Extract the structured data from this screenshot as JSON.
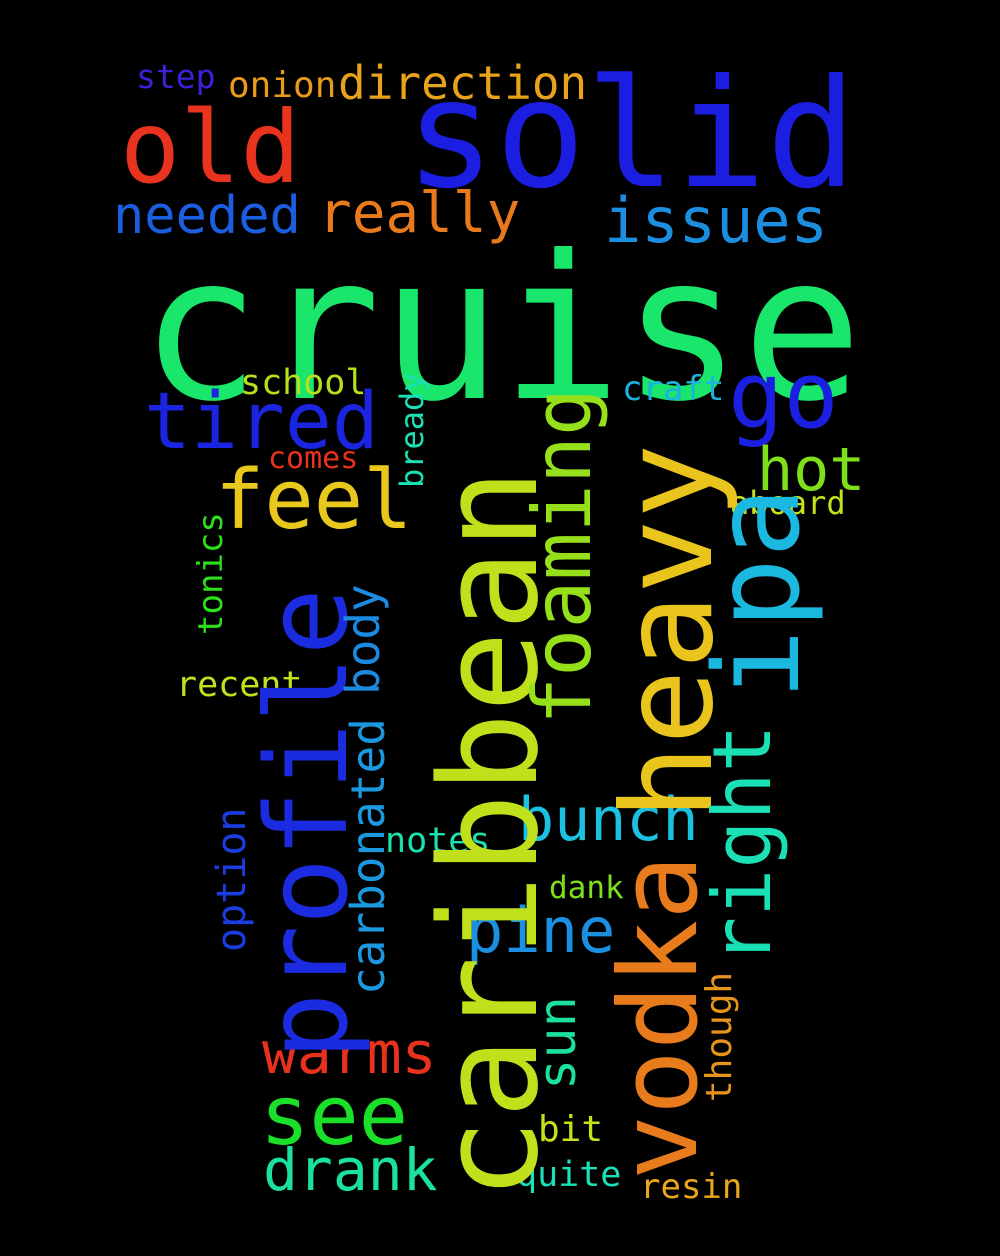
{
  "words": [
    {
      "text": "cruise",
      "color": "#19e66a"
    },
    {
      "text": "solid",
      "color": "#1b1ee0"
    },
    {
      "text": "old",
      "color": "#e8331f"
    },
    {
      "text": "direction",
      "color": "#e8a21c"
    },
    {
      "text": "onion",
      "color": "#e89a1c"
    },
    {
      "text": "step",
      "color": "#3a22d9"
    },
    {
      "text": "needed",
      "color": "#1b5ee0"
    },
    {
      "text": "really",
      "color": "#e87a1c"
    },
    {
      "text": "issues",
      "color": "#1b8ee0"
    },
    {
      "text": "tired",
      "color": "#1b25e0"
    },
    {
      "text": "school",
      "color": "#b5e01b"
    },
    {
      "text": "feel",
      "color": "#e8c81c"
    },
    {
      "text": "comes",
      "color": "#e8321e"
    },
    {
      "text": "go",
      "color": "#1b20e0"
    },
    {
      "text": "craft",
      "color": "#1bb2e0"
    },
    {
      "text": "hot",
      "color": "#7ee01b"
    },
    {
      "text": "aboard",
      "color": "#c6e01b"
    },
    {
      "text": "recent",
      "color": "#c2e01b"
    },
    {
      "text": "bunch",
      "color": "#1bc1e0"
    },
    {
      "text": "notes",
      "color": "#1be0b0"
    },
    {
      "text": "dank",
      "color": "#7ee01b"
    },
    {
      "text": "pine",
      "color": "#1b90e0"
    },
    {
      "text": "warms",
      "color": "#e8321e"
    },
    {
      "text": "see",
      "color": "#1be02a"
    },
    {
      "text": "drank",
      "color": "#1be0a0"
    },
    {
      "text": "bit",
      "color": "#c8e01b"
    },
    {
      "text": "quite",
      "color": "#1be0b8"
    },
    {
      "text": "resin",
      "color": "#e8a81c"
    },
    {
      "text": "caribbean",
      "color": "#c0e01b"
    },
    {
      "text": "heavy",
      "color": "#e8c41c"
    },
    {
      "text": "vodka",
      "color": "#e87c1c"
    },
    {
      "text": "profile",
      "color": "#1b2ce0"
    },
    {
      "text": "foaming",
      "color": "#96e01b"
    },
    {
      "text": "ipa",
      "color": "#1bb8e0"
    },
    {
      "text": "right",
      "color": "#1be0b6"
    },
    {
      "text": "carbonated",
      "color": "#1b98e0"
    },
    {
      "text": "body",
      "color": "#1b8ae0"
    },
    {
      "text": "bready",
      "color": "#1be0b2"
    },
    {
      "text": "tonics",
      "color": "#2ee01b"
    },
    {
      "text": "option",
      "color": "#1b3ce0"
    },
    {
      "text": "sun",
      "color": "#1be0a0"
    },
    {
      "text": "though",
      "color": "#e8941c"
    }
  ]
}
